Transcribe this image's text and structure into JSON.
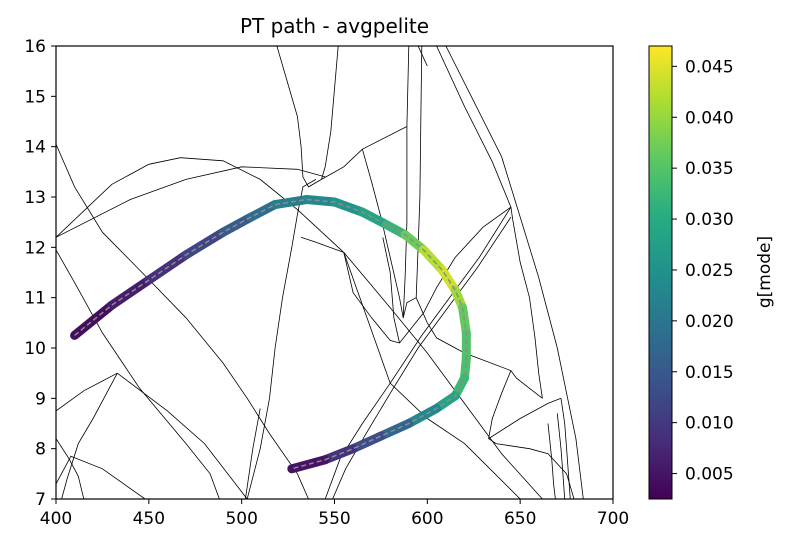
{
  "chart_data": {
    "type": "line",
    "title": "PT path - avgpelite",
    "xlabel": "",
    "ylabel": "",
    "xlim": [
      400,
      700
    ],
    "ylim": [
      7,
      16
    ],
    "x_ticks": [
      "400",
      "450",
      "500",
      "550",
      "600",
      "650",
      "700"
    ],
    "y_ticks": [
      "7",
      "8",
      "9",
      "10",
      "11",
      "12",
      "13",
      "14",
      "15",
      "16"
    ],
    "grid": false,
    "colorbar": {
      "label": "g[mode]",
      "range": [
        0.0025,
        0.047
      ],
      "colormap": "viridis",
      "ticks": [
        "0.005",
        "0.010",
        "0.015",
        "0.020",
        "0.025",
        "0.030",
        "0.035",
        "0.040",
        "0.045"
      ]
    },
    "path": [
      {
        "x": 410,
        "y": 10.25,
        "c": 0.003
      },
      {
        "x": 430,
        "y": 10.85,
        "c": 0.005
      },
      {
        "x": 450,
        "y": 11.35,
        "c": 0.007
      },
      {
        "x": 470,
        "y": 11.85,
        "c": 0.01
      },
      {
        "x": 490,
        "y": 12.3,
        "c": 0.014
      },
      {
        "x": 505,
        "y": 12.6,
        "c": 0.017
      },
      {
        "x": 518,
        "y": 12.85,
        "c": 0.0205
      },
      {
        "x": 535,
        "y": 12.95,
        "c": 0.0225
      },
      {
        "x": 550,
        "y": 12.9,
        "c": 0.024
      },
      {
        "x": 565,
        "y": 12.7,
        "c": 0.0265
      },
      {
        "x": 578,
        "y": 12.45,
        "c": 0.03
      },
      {
        "x": 588,
        "y": 12.25,
        "c": 0.034
      },
      {
        "x": 598,
        "y": 11.95,
        "c": 0.04
      },
      {
        "x": 608,
        "y": 11.55,
        "c": 0.0445
      },
      {
        "x": 615,
        "y": 11.15,
        "c": 0.043
      },
      {
        "x": 619,
        "y": 10.8,
        "c": 0.038
      },
      {
        "x": 621,
        "y": 10.3,
        "c": 0.035
      },
      {
        "x": 621,
        "y": 9.8,
        "c": 0.0345
      },
      {
        "x": 620,
        "y": 9.4,
        "c": 0.034
      },
      {
        "x": 615,
        "y": 9.05,
        "c": 0.031
      },
      {
        "x": 605,
        "y": 8.8,
        "c": 0.026
      },
      {
        "x": 590,
        "y": 8.5,
        "c": 0.02
      },
      {
        "x": 575,
        "y": 8.25,
        "c": 0.015
      },
      {
        "x": 560,
        "y": 8.0,
        "c": 0.011
      },
      {
        "x": 545,
        "y": 7.78,
        "c": 0.007
      },
      {
        "x": 527,
        "y": 7.6,
        "c": 0.003
      }
    ],
    "boundaries": [
      [
        [
          400,
          12.2
        ],
        [
          440,
          12.95
        ],
        [
          470,
          13.35
        ],
        [
          500,
          13.6
        ],
        [
          530,
          13.55
        ],
        [
          545,
          13.4
        ]
      ],
      [
        [
          400,
          12.2
        ],
        [
          430,
          13.25
        ],
        [
          450,
          13.65
        ],
        [
          467,
          13.78
        ],
        [
          490,
          13.72
        ],
        [
          510,
          13.35
        ],
        [
          530,
          12.75
        ],
        [
          555,
          11.9
        ],
        [
          580,
          10.8
        ],
        [
          600,
          9.9
        ],
        [
          620,
          8.9
        ],
        [
          640,
          7.9
        ],
        [
          662,
          7.0
        ]
      ],
      [
        [
          400,
          14.05
        ],
        [
          410,
          13.2
        ],
        [
          425,
          12.3
        ],
        [
          445,
          11.55
        ],
        [
          470,
          10.6
        ],
        [
          490,
          9.7
        ],
        [
          503,
          9.0
        ],
        [
          515,
          8.3
        ],
        [
          530,
          7.5
        ],
        [
          536,
          7.0
        ]
      ],
      [
        [
          400,
          11.95
        ],
        [
          410,
          11.3
        ],
        [
          425,
          10.3
        ],
        [
          445,
          9.2
        ],
        [
          470,
          8.1
        ],
        [
          483,
          7.5
        ],
        [
          488,
          7.0
        ]
      ],
      [
        [
          400,
          8.75
        ],
        [
          415,
          9.15
        ],
        [
          433,
          9.5
        ]
      ],
      [
        [
          433,
          9.5
        ],
        [
          420,
          8.6
        ],
        [
          412,
          8.1
        ],
        [
          406,
          7.4
        ],
        [
          403,
          7.0
        ]
      ],
      [
        [
          400,
          8.2
        ],
        [
          407,
          7.8
        ],
        [
          412,
          7.45
        ],
        [
          415,
          7.0
        ]
      ],
      [
        [
          433,
          9.5
        ],
        [
          460,
          8.75
        ],
        [
          480,
          8.1
        ],
        [
          503,
          7.0
        ]
      ],
      [
        [
          400,
          7.3
        ],
        [
          408,
          7.85
        ],
        [
          425,
          7.6
        ],
        [
          448,
          7.0
        ]
      ],
      [
        [
          503,
          7.0
        ],
        [
          510,
          8.0
        ],
        [
          515,
          9.0
        ],
        [
          518,
          10.0
        ],
        [
          522,
          11.0
        ],
        [
          527,
          12.0
        ],
        [
          530,
          12.65
        ],
        [
          533,
          13.2
        ],
        [
          540,
          13.35
        ]
      ],
      [
        [
          519,
          16.0
        ],
        [
          530,
          14.6
        ],
        [
          532,
          14.0
        ],
        [
          533,
          13.4
        ],
        [
          536,
          13.2
        ],
        [
          543,
          13.35
        ]
      ],
      [
        [
          543,
          13.35
        ],
        [
          555,
          13.6
        ],
        [
          565,
          13.95
        ]
      ],
      [
        [
          543,
          13.35
        ],
        [
          545,
          13.6
        ],
        [
          548,
          14.3
        ],
        [
          552,
          16.0
        ]
      ],
      [
        [
          565,
          13.95
        ],
        [
          589,
          14.4
        ]
      ],
      [
        [
          565,
          13.95
        ],
        [
          570,
          13.3
        ],
        [
          575,
          12.6
        ],
        [
          580,
          11.8
        ],
        [
          585,
          11.0
        ],
        [
          587,
          10.6
        ]
      ],
      [
        [
          587,
          10.6
        ],
        [
          588,
          11.4
        ],
        [
          589,
          12.5
        ],
        [
          589,
          14.4
        ],
        [
          590,
          16.0
        ]
      ],
      [
        [
          587,
          10.6
        ],
        [
          589,
          10.9
        ],
        [
          594,
          11.0
        ]
      ],
      [
        [
          594,
          11.0
        ],
        [
          595,
          12.0
        ],
        [
          596,
          13.0
        ],
        [
          596.5,
          14.5
        ],
        [
          597,
          16.0
        ]
      ],
      [
        [
          532,
          12.2
        ],
        [
          540,
          12.1
        ],
        [
          555,
          11.9
        ]
      ],
      [
        [
          555,
          11.9
        ],
        [
          560,
          11.1
        ],
        [
          570,
          10.6
        ],
        [
          580,
          10.15
        ],
        [
          585,
          10.1
        ]
      ],
      [
        [
          555,
          11.9
        ],
        [
          580,
          9.3
        ],
        [
          600,
          8.6
        ],
        [
          620,
          8.1
        ],
        [
          650,
          7.0
        ]
      ],
      [
        [
          594,
          11.0
        ],
        [
          600,
          10.5
        ],
        [
          605,
          10.2
        ],
        [
          620,
          9.9
        ],
        [
          645,
          9.55
        ]
      ],
      [
        [
          645,
          9.55
        ],
        [
          640,
          9.1
        ],
        [
          635,
          8.6
        ],
        [
          633,
          8.2
        ],
        [
          637,
          8.1
        ],
        [
          655,
          8.0
        ],
        [
          665,
          7.9
        ],
        [
          675,
          7.5
        ],
        [
          679,
          7.0
        ]
      ],
      [
        [
          633,
          8.2
        ],
        [
          650,
          8.6
        ],
        [
          665,
          8.9
        ],
        [
          672,
          9.0
        ]
      ],
      [
        [
          672,
          9.0
        ],
        [
          674,
          8.5
        ],
        [
          675,
          8.0
        ],
        [
          677,
          7.0
        ]
      ],
      [
        [
          670,
          8.7
        ],
        [
          672,
          8.0
        ],
        [
          673,
          7.5
        ],
        [
          674,
          7.0
        ]
      ],
      [
        [
          665,
          8.5
        ],
        [
          667,
          7.8
        ],
        [
          668,
          7.3
        ],
        [
          669,
          7.0
        ]
      ],
      [
        [
          585,
          10.1
        ],
        [
          598,
          10.7
        ],
        [
          605,
          11.2
        ],
        [
          615,
          11.8
        ],
        [
          630,
          12.4
        ],
        [
          645,
          12.8
        ]
      ],
      [
        [
          645,
          12.8
        ],
        [
          628,
          11.8
        ],
        [
          614,
          11.1
        ],
        [
          597,
          10.25
        ],
        [
          580,
          9.3
        ],
        [
          565,
          8.5
        ],
        [
          553,
          7.8
        ],
        [
          545,
          7.0
        ]
      ],
      [
        [
          645,
          12.6
        ],
        [
          627,
          11.6
        ],
        [
          612,
          10.85
        ],
        [
          595,
          10.0
        ],
        [
          580,
          9.1
        ],
        [
          567,
          8.3
        ],
        [
          556,
          7.6
        ],
        [
          549,
          7.0
        ]
      ],
      [
        [
          645,
          12.8
        ],
        [
          646,
          12.55
        ],
        [
          650,
          11.7
        ],
        [
          655,
          11.0
        ],
        [
          658,
          10.2
        ],
        [
          660,
          9.5
        ],
        [
          662,
          9.0
        ]
      ],
      [
        [
          645,
          9.55
        ],
        [
          648,
          9.4
        ],
        [
          655,
          9.2
        ],
        [
          662,
          9.0
        ]
      ],
      [
        [
          605,
          16.0
        ],
        [
          620,
          14.8
        ],
        [
          635,
          13.7
        ],
        [
          645,
          12.8
        ]
      ],
      [
        [
          610,
          16.0
        ],
        [
          625,
          14.9
        ],
        [
          640,
          13.8
        ],
        [
          650,
          12.6
        ],
        [
          660,
          11.4
        ],
        [
          670,
          10.0
        ],
        [
          680,
          8.2
        ],
        [
          684,
          7.0
        ]
      ],
      [
        [
          595,
          16.0
        ],
        [
          600,
          15.6
        ]
      ],
      [
        [
          502,
          7.0
        ],
        [
          506,
          8.0
        ],
        [
          510,
          8.8
        ]
      ],
      [
        [
          585,
          10.1
        ],
        [
          582,
          10.6
        ],
        [
          580,
          11.5
        ],
        [
          576,
          12.2
        ]
      ]
    ]
  }
}
